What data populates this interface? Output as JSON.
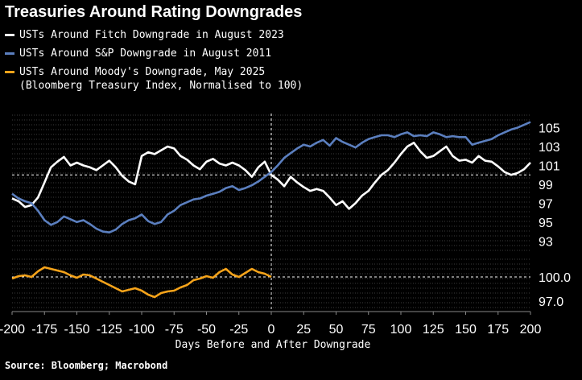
{
  "title": "Treasuries Around Rating Downgrades",
  "legend": {
    "fitch": "USTs Around Fitch Downgrade in August 2023",
    "sp": "USTs Around S&P Downgrade in August 2011",
    "moodys": "USTs Around Moody's Downgrade, May 2025",
    "moodys_note": "(Bloomberg Treasury Index, Normalised to 100)"
  },
  "source": "Source: Bloomberg; Macrobond",
  "colors": {
    "fitch": "#ffffff",
    "sp": "#5b7fbf",
    "moodys": "#f5a31a",
    "background": "#000000"
  },
  "chart_data": [
    {
      "type": "line",
      "panel": "top",
      "ylim": [
        92,
        106.5
      ],
      "yticks": [
        93,
        95,
        97,
        99,
        101,
        103,
        105
      ],
      "reference_line": 100,
      "series": [
        {
          "name": "USTs Around Fitch Downgrade in August 2023",
          "color": "#ffffff",
          "x": [
            -200,
            -195,
            -190,
            -185,
            -180,
            -175,
            -170,
            -165,
            -160,
            -155,
            -150,
            -145,
            -140,
            -135,
            -130,
            -125,
            -120,
            -115,
            -110,
            -105,
            -100,
            -95,
            -90,
            -85,
            -80,
            -75,
            -70,
            -65,
            -60,
            -55,
            -50,
            -45,
            -40,
            -35,
            -30,
            -25,
            -20,
            -15,
            -10,
            -5,
            0,
            5,
            10,
            15,
            20,
            25,
            30,
            35,
            40,
            45,
            50,
            55,
            60,
            65,
            70,
            75,
            80,
            85,
            90,
            95,
            100,
            105,
            110,
            115,
            120,
            125,
            130,
            135,
            140,
            145,
            150,
            155,
            160,
            165,
            170,
            175,
            180,
            185,
            190,
            195,
            200
          ],
          "values": [
            97.5,
            97.2,
            96.6,
            96.8,
            97.6,
            99.2,
            100.8,
            101.4,
            101.9,
            101.0,
            101.3,
            101.0,
            100.8,
            100.5,
            101.0,
            101.5,
            100.8,
            99.9,
            99.3,
            99.0,
            102.0,
            102.4,
            102.2,
            102.6,
            103.0,
            102.8,
            102.0,
            101.6,
            101.0,
            100.6,
            101.4,
            101.7,
            101.2,
            101.0,
            101.3,
            101.0,
            100.5,
            99.8,
            100.8,
            101.4,
            100.0,
            99.5,
            98.8,
            99.8,
            99.2,
            98.7,
            98.3,
            98.5,
            98.3,
            97.6,
            96.8,
            97.2,
            96.4,
            97.0,
            97.8,
            98.3,
            99.2,
            100.0,
            100.5,
            101.3,
            102.2,
            103.0,
            103.4,
            102.5,
            101.8,
            102.0,
            102.5,
            103.0,
            102.0,
            101.5,
            101.6,
            101.3,
            102.0,
            101.5,
            101.4,
            100.9,
            100.3,
            100.0,
            100.2,
            100.6,
            101.3
          ]
        },
        {
          "name": "USTs Around S&P Downgrade in August 2011",
          "color": "#5b7fbf",
          "x": [
            -200,
            -195,
            -190,
            -185,
            -180,
            -175,
            -170,
            -165,
            -160,
            -155,
            -150,
            -145,
            -140,
            -135,
            -130,
            -125,
            -120,
            -115,
            -110,
            -105,
            -100,
            -95,
            -90,
            -85,
            -80,
            -75,
            -70,
            -65,
            -60,
            -55,
            -50,
            -45,
            -40,
            -35,
            -30,
            -25,
            -20,
            -15,
            -10,
            -5,
            0,
            5,
            10,
            15,
            20,
            25,
            30,
            35,
            40,
            45,
            50,
            55,
            60,
            65,
            70,
            75,
            80,
            85,
            90,
            95,
            100,
            105,
            110,
            115,
            120,
            125,
            130,
            135,
            140,
            145,
            150,
            155,
            160,
            165,
            170,
            175,
            180,
            185,
            190,
            195,
            200
          ],
          "values": [
            98.0,
            97.5,
            97.2,
            97.0,
            96.2,
            95.2,
            94.7,
            95.0,
            95.6,
            95.3,
            95.0,
            95.2,
            94.8,
            94.3,
            94.0,
            93.9,
            94.2,
            94.8,
            95.2,
            95.4,
            95.8,
            95.1,
            94.8,
            95.0,
            95.8,
            96.2,
            96.8,
            97.1,
            97.4,
            97.5,
            97.8,
            98.0,
            98.2,
            98.6,
            98.8,
            98.4,
            98.6,
            98.9,
            99.3,
            99.8,
            100.3,
            101.0,
            101.8,
            102.3,
            102.8,
            103.2,
            103.0,
            103.4,
            103.7,
            103.1,
            103.9,
            103.5,
            103.2,
            102.9,
            103.4,
            103.8,
            104.0,
            104.2,
            104.2,
            104.0,
            104.3,
            104.5,
            104.1,
            104.2,
            104.1,
            104.5,
            104.3,
            104.0,
            104.1,
            104.0,
            104.0,
            103.2,
            103.4,
            103.6,
            103.8,
            104.2,
            104.5,
            104.8,
            105.0,
            105.3,
            105.6
          ]
        }
      ]
    },
    {
      "type": "line",
      "panel": "bottom",
      "ylim": [
        95.9,
        102.4
      ],
      "yticks": [
        97.0,
        100.0
      ],
      "reference_line": 100,
      "series": [
        {
          "name": "USTs Around Moody's Downgrade, May 2025",
          "color": "#f5a31a",
          "x": [
            -200,
            -195,
            -190,
            -185,
            -180,
            -175,
            -170,
            -165,
            -160,
            -155,
            -150,
            -145,
            -140,
            -135,
            -130,
            -125,
            -120,
            -115,
            -110,
            -105,
            -100,
            -95,
            -90,
            -85,
            -80,
            -75,
            -70,
            -65,
            -60,
            -55,
            -50,
            -45,
            -40,
            -35,
            -30,
            -25,
            -20,
            -15,
            -10,
            -5,
            0
          ],
          "values": [
            99.8,
            100.1,
            100.2,
            100.0,
            100.7,
            101.2,
            101.0,
            100.8,
            100.6,
            100.2,
            99.9,
            100.3,
            100.2,
            99.8,
            99.4,
            99.0,
            98.6,
            98.2,
            98.4,
            98.6,
            98.3,
            97.8,
            97.5,
            98.0,
            98.2,
            98.3,
            98.7,
            99.0,
            99.6,
            99.8,
            100.1,
            99.9,
            100.6,
            101.0,
            100.3,
            100.0,
            100.5,
            101.0,
            100.6,
            100.4,
            100.0
          ]
        }
      ]
    }
  ],
  "x_axis": {
    "label": "Days Before and After Downgrade",
    "ticks": [
      -200,
      -175,
      -150,
      -125,
      -100,
      -75,
      -50,
      -25,
      0,
      25,
      50,
      75,
      100,
      125,
      150,
      175,
      200
    ],
    "range": [
      -200,
      200
    ]
  }
}
